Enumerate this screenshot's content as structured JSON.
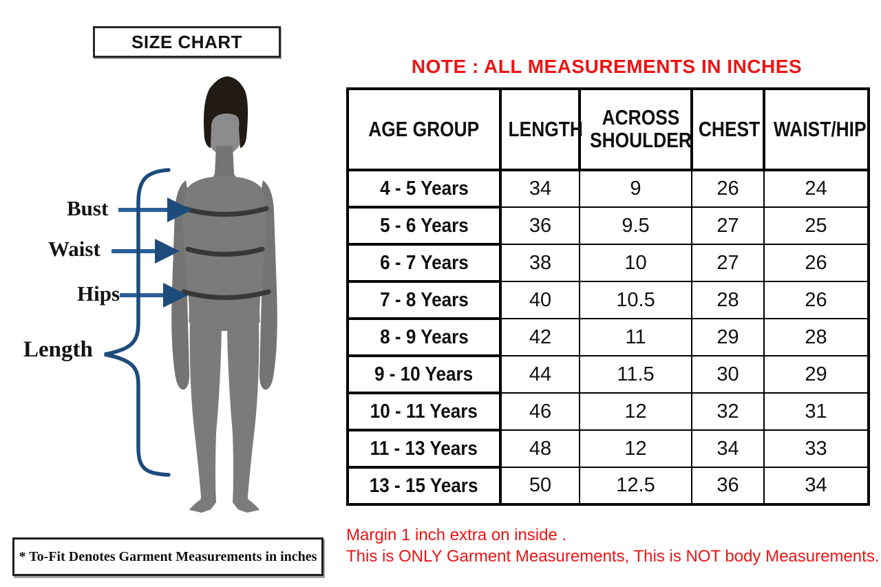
{
  "left_panel": {
    "title": "SIZE CHART",
    "figure_labels": {
      "bust": "Bust",
      "waist": "Waist",
      "hips": "Hips",
      "length": "Length"
    },
    "footnote": "* To-Fit Denotes Garment Measurements in inches"
  },
  "right_panel": {
    "note": "NOTE : ALL MEASUREMENTS IN INCHES",
    "footnotes": [
      "Margin 1 inch extra on inside .",
      "This is ONLY Garment Measurements, This is NOT body Measurements."
    ]
  },
  "table": {
    "headers": [
      "AGE GROUP",
      "LENGTH",
      "ACROSS SHOULDER",
      "CHEST",
      "WAIST/HIP"
    ],
    "rows": [
      [
        "4 - 5 Years",
        "34",
        "9",
        "26",
        "24"
      ],
      [
        "5 - 6 Years",
        "36",
        "9.5",
        "27",
        "25"
      ],
      [
        "6 - 7 Years",
        "38",
        "10",
        "27",
        "26"
      ],
      [
        "7 - 8 Years",
        "40",
        "10.5",
        "28",
        "26"
      ],
      [
        "8 - 9 Years",
        "42",
        "11",
        "29",
        "28"
      ],
      [
        "9 - 10 Years",
        "44",
        "11.5",
        "30",
        "29"
      ],
      [
        "10 - 11 Years",
        "46",
        "12",
        "32",
        "31"
      ],
      [
        "11 - 13 Years",
        "48",
        "12",
        "34",
        "33"
      ],
      [
        "13 - 15 Years",
        "50",
        "12.5",
        "36",
        "34"
      ]
    ]
  },
  "chart_data": {
    "type": "table",
    "title": "SIZE CHART",
    "units": "inches",
    "columns": [
      "AGE GROUP",
      "LENGTH",
      "ACROSS SHOULDER",
      "CHEST",
      "WAIST/HIP"
    ],
    "rows": [
      [
        "4 - 5 Years",
        34,
        9,
        26,
        24
      ],
      [
        "5 - 6 Years",
        36,
        9.5,
        27,
        25
      ],
      [
        "6 - 7 Years",
        38,
        10,
        27,
        26
      ],
      [
        "7 - 8 Years",
        40,
        10.5,
        28,
        26
      ],
      [
        "8 - 9 Years",
        42,
        11,
        29,
        28
      ],
      [
        "9 - 10 Years",
        44,
        11.5,
        30,
        29
      ],
      [
        "10 - 11 Years",
        46,
        12,
        32,
        31
      ],
      [
        "11 - 13 Years",
        48,
        12,
        34,
        33
      ],
      [
        "13 - 15 Years",
        50,
        12.5,
        36,
        34
      ]
    ]
  },
  "colors": {
    "note_red": "#ee1414",
    "arrow_blue": "#1d4c7c",
    "arrow_line_blue": "#2a6099",
    "silhouette_gray": "#7b7b7b",
    "arm_gray": "#747474",
    "face_gray": "#8c8c8c",
    "hair_dark": "#221b15",
    "band_gray": "#383838",
    "table_border": "#000000",
    "text_black": "#111111"
  }
}
